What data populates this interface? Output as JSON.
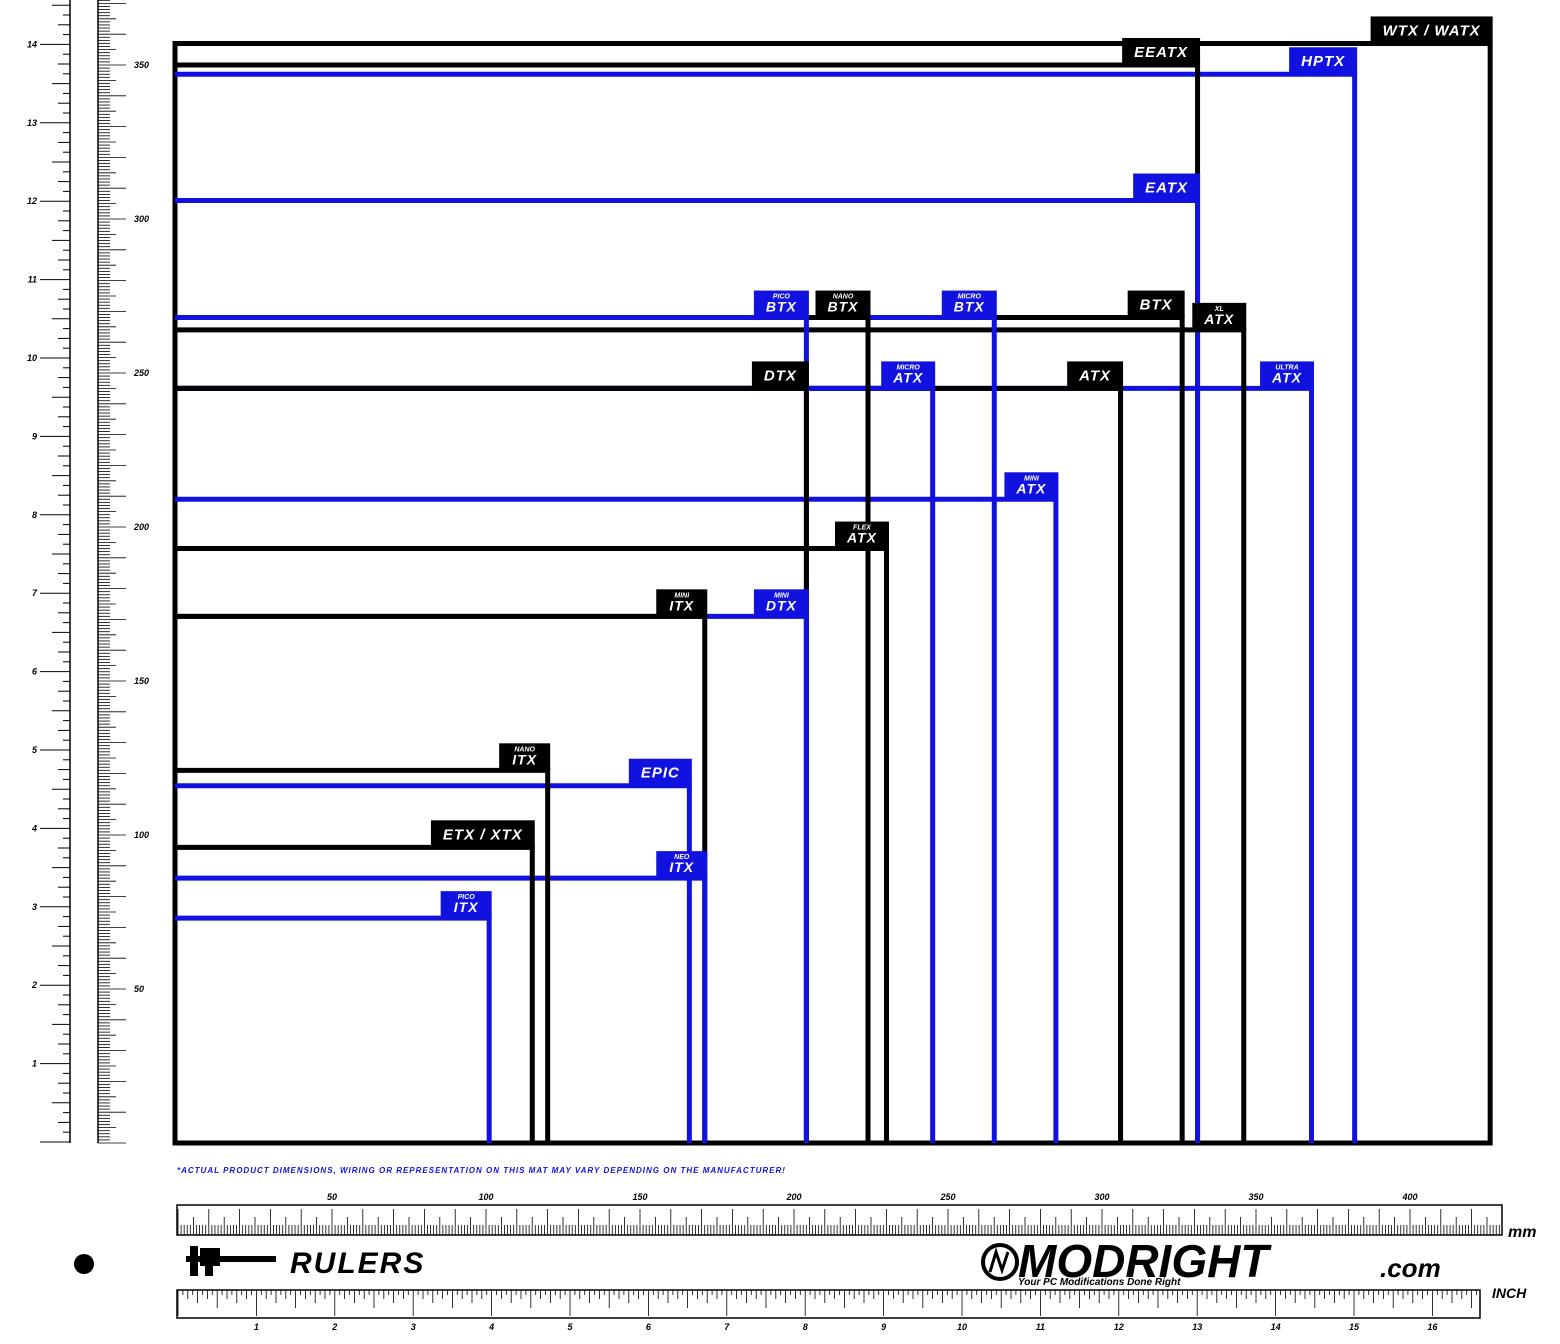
{
  "boards": [
    {
      "label": "WTX / WATX",
      "color": "#000000",
      "width": 427,
      "height": 357
    },
    {
      "label": "HPTX",
      "color": "#1212e0",
      "width": 383,
      "height": 347
    },
    {
      "label": "EEATX",
      "color": "#000000",
      "width": 332,
      "height": 350
    },
    {
      "label": "EATX",
      "color": "#1212e0",
      "width": 332,
      "height": 306
    },
    {
      "label": "ATX",
      "prefix": "ULTRA",
      "color": "#1212e0",
      "width": 369,
      "height": 245
    },
    {
      "label": "ATX",
      "prefix": "XL",
      "color": "#000000",
      "width": 347,
      "height": 264
    },
    {
      "label": "BTX",
      "color": "#000000",
      "width": 327,
      "height": 268
    },
    {
      "label": "ATX",
      "color": "#000000",
      "width": 307,
      "height": 245
    },
    {
      "label": "ATX",
      "prefix": "MINI",
      "color": "#1212e0",
      "width": 286,
      "height": 209
    },
    {
      "label": "BTX",
      "prefix": "MICRO",
      "color": "#1212e0",
      "width": 266,
      "height": 268
    },
    {
      "label": "ATX",
      "prefix": "MICRO",
      "color": "#1212e0",
      "width": 246,
      "height": 245
    },
    {
      "label": "ATX",
      "prefix": "FLEX",
      "color": "#000000",
      "width": 231,
      "height": 193
    },
    {
      "label": "BTX",
      "prefix": "NANO",
      "color": "#000000",
      "width": 225,
      "height": 268
    },
    {
      "label": "BTX",
      "prefix": "PICO",
      "color": "#1212e0",
      "width": 205,
      "height": 268
    },
    {
      "label": "DTX",
      "color": "#000000",
      "width": 205,
      "height": 245
    },
    {
      "label": "DTX",
      "prefix": "MINI",
      "color": "#1212e0",
      "width": 205,
      "height": 171
    },
    {
      "label": "ITX",
      "prefix": "MINI",
      "color": "#000000",
      "width": 172,
      "height": 171
    },
    {
      "label": "ITX",
      "prefix": "NEO",
      "color": "#1212e0",
      "width": 172,
      "height": 86
    },
    {
      "label": "EPIC",
      "color": "#1212e0",
      "width": 167,
      "height": 116
    },
    {
      "label": "ITX",
      "prefix": "NANO",
      "color": "#000000",
      "width": 121,
      "height": 121
    },
    {
      "label": "ETX / XTX",
      "color": "#000000",
      "width": 116,
      "height": 96
    },
    {
      "label": "ITX",
      "prefix": "PICO",
      "color": "#1212e0",
      "width": 102,
      "height": 73
    }
  ],
  "rulers": {
    "vertical_inch": {
      "labels": [
        1,
        2,
        3,
        4,
        5,
        6,
        7,
        8,
        9,
        10,
        11,
        12,
        13,
        14
      ]
    },
    "vertical_mm": {
      "labels": [
        50,
        100,
        150,
        200,
        250,
        300,
        350
      ]
    },
    "horizontal_mm": {
      "labels": [
        50,
        100,
        150,
        200,
        250,
        300,
        350,
        400
      ],
      "unit": "mm"
    },
    "horizontal_inch": {
      "labels": [
        1,
        2,
        3,
        4,
        5,
        6,
        7,
        8,
        9,
        10,
        11,
        12,
        13,
        14,
        15,
        16
      ],
      "unit": "INCH"
    }
  },
  "footer": {
    "disclaimer": "*ACTUAL PRODUCT DIMENSIONS, WIRING OR REPRESENTATION ON THIS MAT MAY VARY DEPENDING ON THE MANUFACTURER!",
    "rulers_title": "RULERS",
    "brand": "MODRIGHT",
    "brand_suffix": ".com",
    "tagline": "Your PC Modifications Done Right"
  }
}
